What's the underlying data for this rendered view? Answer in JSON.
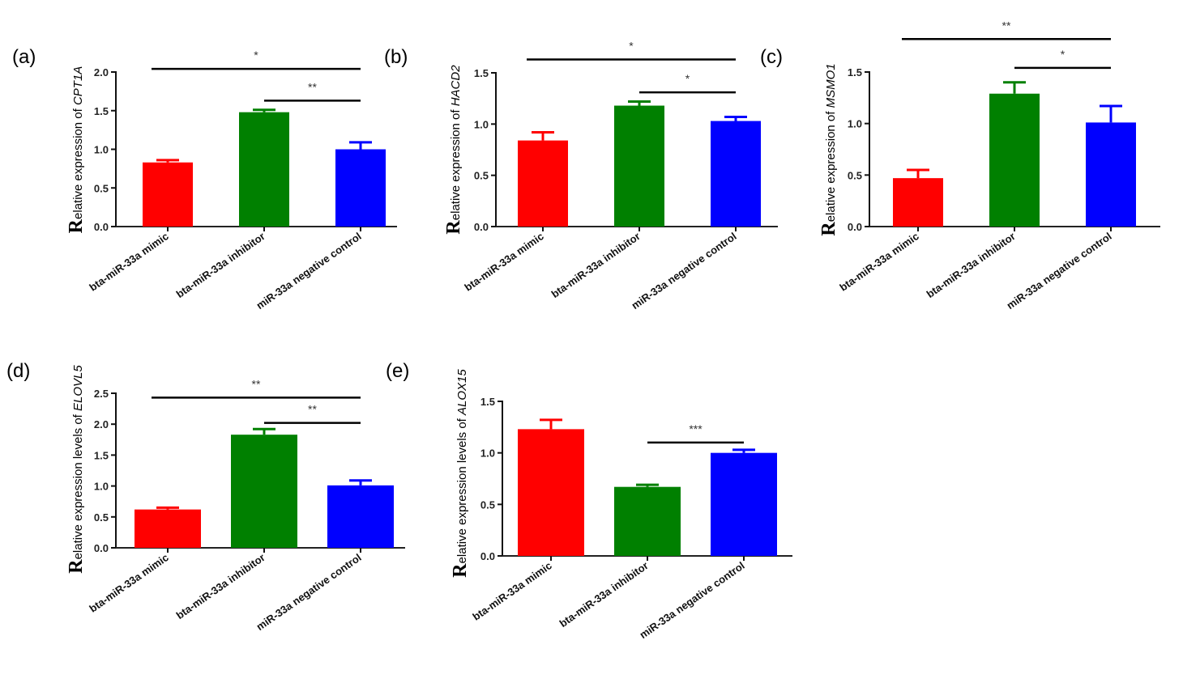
{
  "chart_data": [
    {
      "type": "bar",
      "panel": "(a)",
      "ylabel_initial": "R",
      "ylabel_rest": "elative expression of ",
      "gene": "CPT1A",
      "categories": [
        "bta-miR-33a mimic",
        "bta-miR-33a inhibitor",
        "miR-33a negative control"
      ],
      "values": [
        0.83,
        1.48,
        1.0
      ],
      "errors": [
        0.03,
        0.03,
        0.09
      ],
      "colors": [
        "#ff0000",
        "#008000",
        "#0000ff"
      ],
      "ylim": [
        0,
        2.0
      ],
      "yticks": [
        "0.0",
        "0.5",
        "1.0",
        "1.5",
        "2.0"
      ],
      "significance": [
        {
          "from": 0,
          "to": 2,
          "label": "*",
          "level": 2.04
        },
        {
          "from": 1,
          "to": 2,
          "label": "**",
          "level": 1.63
        }
      ]
    },
    {
      "type": "bar",
      "panel": "(b)",
      "ylabel_initial": "R",
      "ylabel_rest": "elative expression of ",
      "gene": "HACD2",
      "categories": [
        "bta-miR-33a mimic",
        "bta-miR-33a inhibitor",
        "miR-33a negative control"
      ],
      "values": [
        0.84,
        1.18,
        1.03
      ],
      "errors": [
        0.08,
        0.04,
        0.04
      ],
      "colors": [
        "#ff0000",
        "#008000",
        "#0000ff"
      ],
      "ylim": [
        0,
        1.5
      ],
      "yticks": [
        "0.0",
        "0.5",
        "1.0",
        "1.5"
      ],
      "significance": [
        {
          "from": 0,
          "to": 2,
          "label": "*",
          "level": 1.63
        },
        {
          "from": 1,
          "to": 2,
          "label": "*",
          "level": 1.31
        }
      ]
    },
    {
      "type": "bar",
      "panel": "(c)",
      "ylabel_initial": "R",
      "ylabel_rest": "elative expression of ",
      "gene": "MSMO1",
      "categories": [
        "bta-miR-33a mimic",
        "bta-miR-33a inhibitor",
        "miR-33a negative control"
      ],
      "values": [
        0.47,
        1.29,
        1.01
      ],
      "errors": [
        0.08,
        0.11,
        0.16
      ],
      "colors": [
        "#ff0000",
        "#008000",
        "#0000ff"
      ],
      "ylim": [
        0,
        1.5
      ],
      "yticks": [
        "0.0",
        "0.5",
        "1.0",
        "1.5"
      ],
      "significance": [
        {
          "from": 0,
          "to": 2,
          "label": "**",
          "level": 1.82
        },
        {
          "from": 1,
          "to": 2,
          "label": "*",
          "level": 1.54
        }
      ]
    },
    {
      "type": "bar",
      "panel": "(d)",
      "ylabel_initial": "R",
      "ylabel_rest": "elative expression levels of ",
      "gene": "ELOVL5",
      "categories": [
        "bta-miR-33a mimic",
        "bta-miR-33a inhibitor",
        "miR-33a negative control"
      ],
      "values": [
        0.62,
        1.83,
        1.01
      ],
      "errors": [
        0.03,
        0.09,
        0.08
      ],
      "colors": [
        "#ff0000",
        "#008000",
        "#0000ff"
      ],
      "ylim": [
        0,
        2.5
      ],
      "yticks": [
        "0.0",
        "0.5",
        "1.0",
        "1.5",
        "2.0",
        "2.5"
      ],
      "significance": [
        {
          "from": 0,
          "to": 2,
          "label": "**",
          "level": 2.43
        },
        {
          "from": 1,
          "to": 2,
          "label": "**",
          "level": 2.02
        }
      ]
    },
    {
      "type": "bar",
      "panel": "(e)",
      "ylabel_initial": "R",
      "ylabel_rest": "elative expression levels of ",
      "gene": "ALOX15",
      "categories": [
        "bta-miR-33a mimic",
        "bta-miR-33a inhibitor",
        "miR-33a negative control"
      ],
      "values": [
        1.23,
        0.67,
        1.0
      ],
      "errors": [
        0.09,
        0.02,
        0.03
      ],
      "colors": [
        "#ff0000",
        "#008000",
        "#0000ff"
      ],
      "ylim": [
        0,
        1.5
      ],
      "yticks": [
        "0.0",
        "0.5",
        "1.0",
        "1.5"
      ],
      "significance": [
        {
          "from": 1,
          "to": 2,
          "label": "***",
          "level": 1.1
        }
      ]
    }
  ]
}
